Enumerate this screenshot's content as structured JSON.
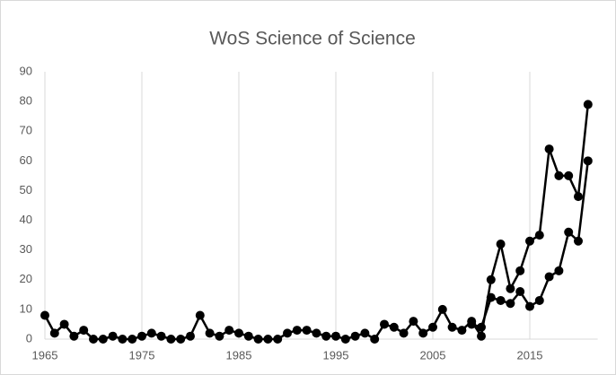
{
  "chart_data": {
    "type": "line",
    "title": "WoS Science of Science",
    "x": [
      1965,
      1966,
      1967,
      1968,
      1969,
      1970,
      1971,
      1972,
      1973,
      1974,
      1975,
      1976,
      1977,
      1978,
      1979,
      1980,
      1981,
      1982,
      1983,
      1984,
      1985,
      1986,
      1987,
      1988,
      1989,
      1990,
      1991,
      1992,
      1993,
      1994,
      1995,
      1996,
      1997,
      1998,
      1999,
      2000,
      2001,
      2002,
      2003,
      2004,
      2005,
      2006,
      2007,
      2008,
      2009,
      2010,
      2011,
      2012,
      2013,
      2014,
      2015,
      2016,
      2017,
      2018,
      2019,
      2020,
      2021
    ],
    "series": [
      {
        "color": "#000000",
        "values": [
          8,
          2,
          5,
          1,
          3,
          0,
          0,
          1,
          0,
          0,
          1,
          2,
          1,
          0,
          0,
          1,
          8,
          2,
          1,
          3,
          2,
          1,
          0,
          0,
          0,
          2,
          3,
          3,
          2,
          1,
          1,
          0,
          1,
          2,
          0,
          5,
          4,
          2,
          6,
          2,
          4,
          10,
          4,
          3,
          6,
          1,
          20,
          32,
          17,
          23,
          33,
          35,
          64,
          55,
          55,
          48,
          79
        ]
      },
      {
        "color": "#000000",
        "values": [
          null,
          null,
          null,
          null,
          null,
          null,
          null,
          null,
          null,
          null,
          null,
          null,
          null,
          null,
          null,
          null,
          null,
          null,
          null,
          null,
          null,
          null,
          null,
          null,
          null,
          null,
          null,
          null,
          null,
          null,
          null,
          null,
          null,
          null,
          null,
          null,
          null,
          null,
          null,
          null,
          null,
          null,
          null,
          null,
          5,
          4,
          14,
          13,
          12,
          16,
          11,
          13,
          21,
          23,
          36,
          33,
          60
        ]
      }
    ],
    "xlim": [
      1965,
      2022
    ],
    "xticks": [
      1965,
      1975,
      1985,
      1995,
      2005,
      2015
    ],
    "ylim": [
      0,
      90
    ],
    "yticks": [
      0,
      10,
      20,
      30,
      40,
      50,
      60,
      70,
      80,
      90
    ],
    "grid": "x"
  }
}
